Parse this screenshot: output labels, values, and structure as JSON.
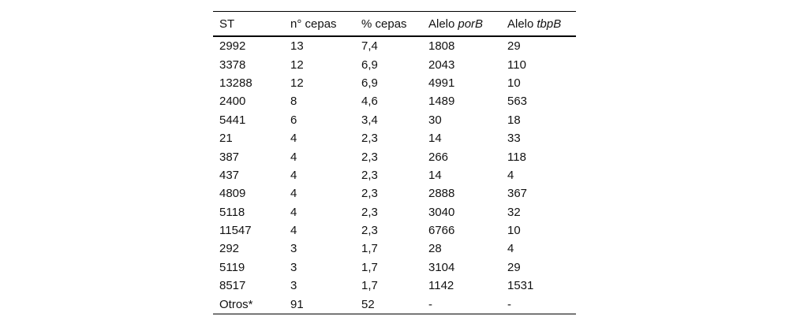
{
  "colors": {
    "background": "#ffffff",
    "text": "#121212",
    "rule": "#000000"
  },
  "table": {
    "columns": [
      {
        "key": "st",
        "label": "ST",
        "gene": ""
      },
      {
        "key": "n-cepas",
        "label": "n° cepas",
        "gene": ""
      },
      {
        "key": "pct-cepas",
        "label": "% cepas",
        "gene": ""
      },
      {
        "key": "alelo-porB",
        "label": "Alelo",
        "gene": "porB"
      },
      {
        "key": "alelo-tbpB",
        "label": "Alelo",
        "gene": "tbpB"
      }
    ],
    "rows": [
      [
        "2992",
        "13",
        "7,4",
        "1808",
        "29"
      ],
      [
        "3378",
        "12",
        "6,9",
        "2043",
        "110"
      ],
      [
        "13288",
        "12",
        "6,9",
        "4991",
        "10"
      ],
      [
        "2400",
        "8",
        "4,6",
        "1489",
        "563"
      ],
      [
        "5441",
        "6",
        "3,4",
        "30",
        "18"
      ],
      [
        "21",
        "4",
        "2,3",
        "14",
        "33"
      ],
      [
        "387",
        "4",
        "2,3",
        "266",
        "118"
      ],
      [
        "437",
        "4",
        "2,3",
        "14",
        "4"
      ],
      [
        "4809",
        "4",
        "2,3",
        "2888",
        "367"
      ],
      [
        "5118",
        "4",
        "2,3",
        "3040",
        "32"
      ],
      [
        "11547",
        "4",
        "2,3",
        "6766",
        "10"
      ],
      [
        "292",
        "3",
        "1,7",
        "28",
        "4"
      ],
      [
        "5119",
        "3",
        "1,7",
        "3104",
        "29"
      ],
      [
        "8517",
        "3",
        "1,7",
        "1142",
        "1531"
      ],
      [
        "Otros*",
        "91",
        "52",
        "-",
        "-"
      ]
    ]
  }
}
